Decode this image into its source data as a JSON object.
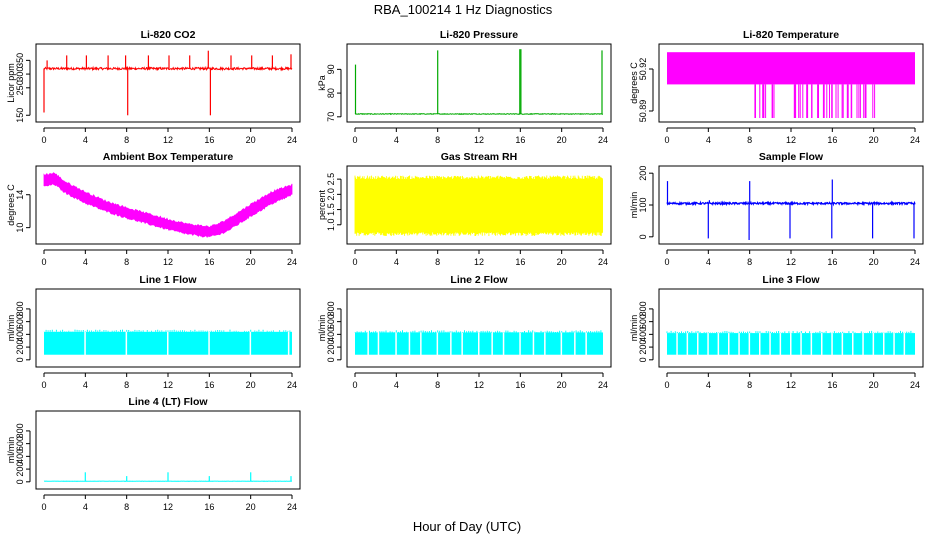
{
  "figure": {
    "title": "RBA_100214  1 Hz Diagnostics",
    "xlabel": "Hour of Day (UTC)"
  },
  "chart_data": [
    {
      "id": "co2",
      "type": "line",
      "title": "Li-820 CO2",
      "ylabel": "Licor ppm",
      "color": "#ff0000",
      "xlim": [
        0,
        24
      ],
      "xticks": [
        0,
        4,
        8,
        12,
        16,
        20,
        24
      ],
      "ylim": [
        140,
        395
      ],
      "yticks": [
        150,
        250,
        300,
        350
      ],
      "baseline": 320,
      "noise": 4,
      "spikes": [
        [
          0.0,
          160
        ],
        [
          0.3,
          350
        ],
        [
          2.2,
          368
        ],
        [
          4.1,
          368
        ],
        [
          6.2,
          368
        ],
        [
          7.9,
          368
        ],
        [
          8.1,
          150
        ],
        [
          10.1,
          368
        ],
        [
          12.1,
          368
        ],
        [
          14.1,
          368
        ],
        [
          15.9,
          385
        ],
        [
          16.1,
          150
        ],
        [
          18.1,
          368
        ],
        [
          20.1,
          368
        ],
        [
          22.1,
          368
        ],
        [
          23.9,
          372
        ]
      ]
    },
    {
      "id": "pressure",
      "type": "line",
      "title": "Li-820 Pressure",
      "ylabel": "kPa",
      "color": "#00aa00",
      "xlim": [
        0,
        24
      ],
      "xticks": [
        0,
        4,
        8,
        12,
        16,
        20,
        24
      ],
      "ylim": [
        69.5,
        99
      ],
      "yticks": [
        70,
        80,
        90
      ],
      "baseline": 71.2,
      "noise": 0.15,
      "spikes": [
        [
          0.05,
          92
        ],
        [
          8.0,
          98
        ],
        [
          15.95,
          98.5
        ],
        [
          16.05,
          98.5
        ],
        [
          23.9,
          98
        ]
      ]
    },
    {
      "id": "licor-temp",
      "type": "area",
      "title": "Li-820 Temperature",
      "ylabel": "degrees C",
      "color": "#ff00ff",
      "xlim": [
        0,
        24
      ],
      "xticks": [
        0,
        4,
        8,
        12,
        16,
        20,
        24
      ],
      "ylim": [
        50.885,
        50.935
      ],
      "yticks": [
        50.89,
        50.92
      ],
      "band_low": 50.909,
      "band_high": 50.932,
      "drops_to": 50.885,
      "drop_ranges": [
        [
          8.5,
          10.5
        ],
        [
          11.8,
          19.5
        ],
        [
          19.8,
          20.2
        ]
      ]
    },
    {
      "id": "ambient-temp",
      "type": "area",
      "title": "Ambient Box Temperature",
      "ylabel": "degrees C",
      "color": "#ff00ff",
      "xlim": [
        0,
        24
      ],
      "xticks": [
        0,
        4,
        8,
        12,
        16,
        20,
        24
      ],
      "ylim": [
        8.5,
        17
      ],
      "yticks": [
        10,
        14
      ],
      "x": [
        0,
        1,
        2,
        4,
        6,
        8,
        10,
        12,
        14,
        16,
        17,
        18,
        20,
        22,
        24
      ],
      "low": [
        15.0,
        15.3,
        14.3,
        13.0,
        12.0,
        11.2,
        10.5,
        9.8,
        9.2,
        8.9,
        9.2,
        9.8,
        11.4,
        12.9,
        14.0
      ],
      "high": [
        16.4,
        16.6,
        15.6,
        14.3,
        13.2,
        12.4,
        11.7,
        11.0,
        10.4,
        10.1,
        10.5,
        11.2,
        12.8,
        14.3,
        15.2
      ]
    },
    {
      "id": "rh",
      "type": "area",
      "title": "Gas Stream RH",
      "ylabel": "percent",
      "color": "#ffff00",
      "xlim": [
        0,
        24
      ],
      "xticks": [
        0,
        4,
        8,
        12,
        16,
        20,
        24
      ],
      "ylim": [
        0.5,
        2.8
      ],
      "yticks": [
        1.0,
        1.5,
        2.0,
        2.5
      ],
      "band_low": 0.75,
      "band_high": 2.5
    },
    {
      "id": "sample-flow",
      "type": "line",
      "title": "Sample Flow",
      "ylabel": "ml/min",
      "color": "#0000ff",
      "xlim": [
        0,
        24
      ],
      "xticks": [
        0,
        4,
        8,
        12,
        16,
        20,
        24
      ],
      "ylim": [
        -10,
        210
      ],
      "yticks": [
        0,
        100,
        200
      ],
      "baseline": 105,
      "noise": 3,
      "spikes": [
        [
          0.05,
          175
        ],
        [
          4.0,
          -5
        ],
        [
          4.1,
          115
        ],
        [
          7.95,
          -10
        ],
        [
          8.0,
          175
        ],
        [
          11.9,
          -5
        ],
        [
          12.0,
          110
        ],
        [
          15.95,
          -5
        ],
        [
          16.0,
          180
        ],
        [
          19.9,
          -5
        ],
        [
          20.0,
          110
        ],
        [
          23.9,
          -5
        ]
      ]
    },
    {
      "id": "line1",
      "type": "area",
      "title": "Line 1 Flow",
      "ylabel": "ml/min",
      "color": "#00ffff",
      "xlim": [
        0,
        24
      ],
      "xticks": [
        0,
        4,
        8,
        12,
        16,
        20,
        24
      ],
      "ylim": [
        -50,
        1050
      ],
      "yticks": [
        0,
        200,
        400,
        600,
        800
      ],
      "band_low": 80,
      "band_high": 440,
      "gaps": [
        3.9,
        7.9,
        11.9,
        15.9,
        19.9,
        23.6
      ]
    },
    {
      "id": "line2",
      "type": "area",
      "title": "Line 2 Flow",
      "ylabel": "ml/min",
      "color": "#00ffff",
      "xlim": [
        0,
        24
      ],
      "xticks": [
        0,
        4,
        8,
        12,
        16,
        20,
        24
      ],
      "ylim": [
        -50,
        1050
      ],
      "yticks": [
        0,
        200,
        400,
        600,
        800
      ],
      "band_low": 80,
      "band_high": 430,
      "gaps": [
        1.2,
        2.2,
        3.9,
        5.2,
        6.3,
        7.9,
        9.2,
        10.3,
        11.9,
        13.2,
        14.3,
        15.9,
        17.2,
        18.3,
        19.9,
        21.2,
        22.3
      ]
    },
    {
      "id": "line3",
      "type": "area",
      "title": "Line 3 Flow",
      "ylabel": "ml/min",
      "color": "#00ffff",
      "xlim": [
        0,
        24
      ],
      "xticks": [
        0,
        4,
        8,
        12,
        16,
        20,
        24
      ],
      "ylim": [
        -50,
        1050
      ],
      "yticks": [
        0,
        200,
        400,
        600,
        800
      ],
      "band_low": 80,
      "band_high": 420,
      "gaps": [
        0.9,
        1.9,
        2.9,
        3.9,
        4.9,
        5.9,
        6.9,
        7.9,
        8.9,
        9.9,
        10.9,
        11.9,
        12.9,
        13.9,
        14.9,
        15.9,
        16.9,
        17.9,
        18.9,
        19.9,
        20.9,
        21.9,
        22.9
      ]
    },
    {
      "id": "line4",
      "type": "line",
      "title": "Line 4 (LT) Flow",
      "ylabel": "ml/min",
      "color": "#00ffff",
      "xlim": [
        0,
        24
      ],
      "xticks": [
        0,
        4,
        8,
        12,
        16,
        20,
        24
      ],
      "ylim": [
        -50,
        1050
      ],
      "yticks": [
        0,
        200,
        400,
        600,
        800
      ],
      "baseline": 10,
      "noise": 2,
      "spikes": [
        [
          4.0,
          150
        ],
        [
          8.0,
          90
        ],
        [
          12.0,
          150
        ],
        [
          16.0,
          90
        ],
        [
          20.0,
          150
        ],
        [
          23.9,
          90
        ]
      ]
    }
  ]
}
